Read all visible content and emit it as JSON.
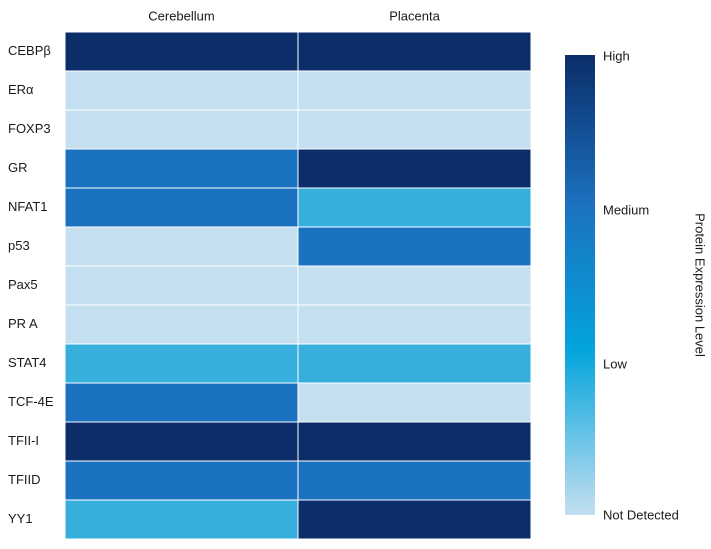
{
  "chart_data": {
    "type": "heatmap",
    "columns": [
      "Cerebellum",
      "Placenta"
    ],
    "rows": [
      "CEBPβ",
      "ERα",
      "FOXP3",
      "GR",
      "NFAT1",
      "p53",
      "Pax5",
      "PR A",
      "STAT4",
      "TCF-4E",
      "TFII-I",
      "TFIID",
      "YY1"
    ],
    "level_scale": {
      "not_detected": 0,
      "low": 1,
      "medium": 2,
      "high": 3
    },
    "values": [
      [
        3,
        3
      ],
      [
        0,
        0
      ],
      [
        0,
        0
      ],
      [
        2,
        3
      ],
      [
        2,
        1
      ],
      [
        0,
        2
      ],
      [
        0,
        0
      ],
      [
        0,
        0
      ],
      [
        1,
        1
      ],
      [
        2,
        0
      ],
      [
        3,
        3
      ],
      [
        2,
        2
      ],
      [
        1,
        3
      ]
    ],
    "colors": {
      "not_detected": "#c3dff0",
      "low": "#37afdd",
      "medium": "#1b72c0",
      "high": "#0b2d69",
      "grid": "#ffffff"
    },
    "colorbar": {
      "title": "Protein Expression Level",
      "tick_labels": [
        "High",
        "Medium",
        "Low",
        "Not Detected"
      ],
      "gradient": [
        "#0b2d69",
        "#1b72c0",
        "#03a4dc",
        "#c3dff0"
      ]
    }
  }
}
